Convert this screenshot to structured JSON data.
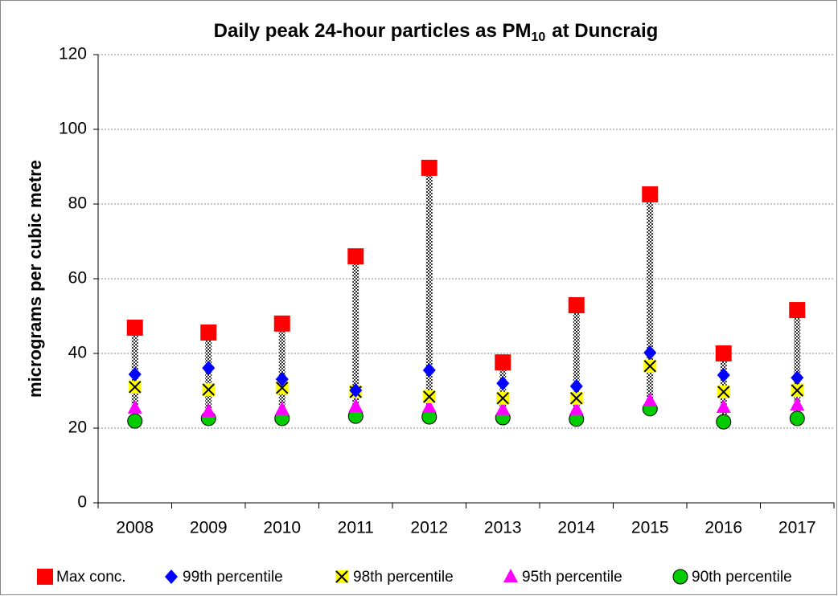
{
  "chart_data": {
    "type": "scatter",
    "title": [
      "Daily peak 24-hour particles as PM",
      "10",
      "at Duncraig"
    ],
    "y_label": "micrograms per cubic metre",
    "categories": [
      "2008",
      "2009",
      "2010",
      "2011",
      "2012",
      "2013",
      "2014",
      "2015",
      "2016",
      "2017"
    ],
    "series": [
      {
        "name": "Max conc.",
        "color": "#ff0000",
        "marker": "square",
        "values": [
          46.9,
          45.6,
          48,
          66,
          89.7,
          37.6,
          52.9,
          82.6,
          40,
          51.6
        ]
      },
      {
        "name": "99th percentile",
        "color": "#0000ff",
        "marker": "diamond",
        "values": [
          34.4,
          36.1,
          33.1,
          30.1,
          35.5,
          32,
          31.2,
          40.2,
          34.2,
          33.5
        ]
      },
      {
        "name": "98th percentile",
        "color": "#ffff00",
        "marker": "x",
        "values": [
          31,
          30.3,
          30.8,
          29.7,
          28.4,
          28,
          28,
          36.6,
          29.7,
          30.1
        ]
      },
      {
        "name": "95th percentile",
        "color": "#ff00ff",
        "marker": "triangle",
        "values": [
          25.4,
          24.5,
          25,
          25.8,
          25.6,
          25,
          25,
          27.3,
          25.6,
          26.2
        ]
      },
      {
        "name": "90th percentile",
        "color": "#00cc00",
        "marker": "circle",
        "values": [
          21.9,
          22.6,
          22.6,
          23.2,
          23,
          22.8,
          22.4,
          25.2,
          21.7,
          22.6
        ]
      }
    ],
    "ylim": [
      0,
      120
    ],
    "yticks": [
      0,
      20,
      40,
      60,
      80,
      100,
      120
    ],
    "grid": true,
    "legend": "bottom"
  }
}
